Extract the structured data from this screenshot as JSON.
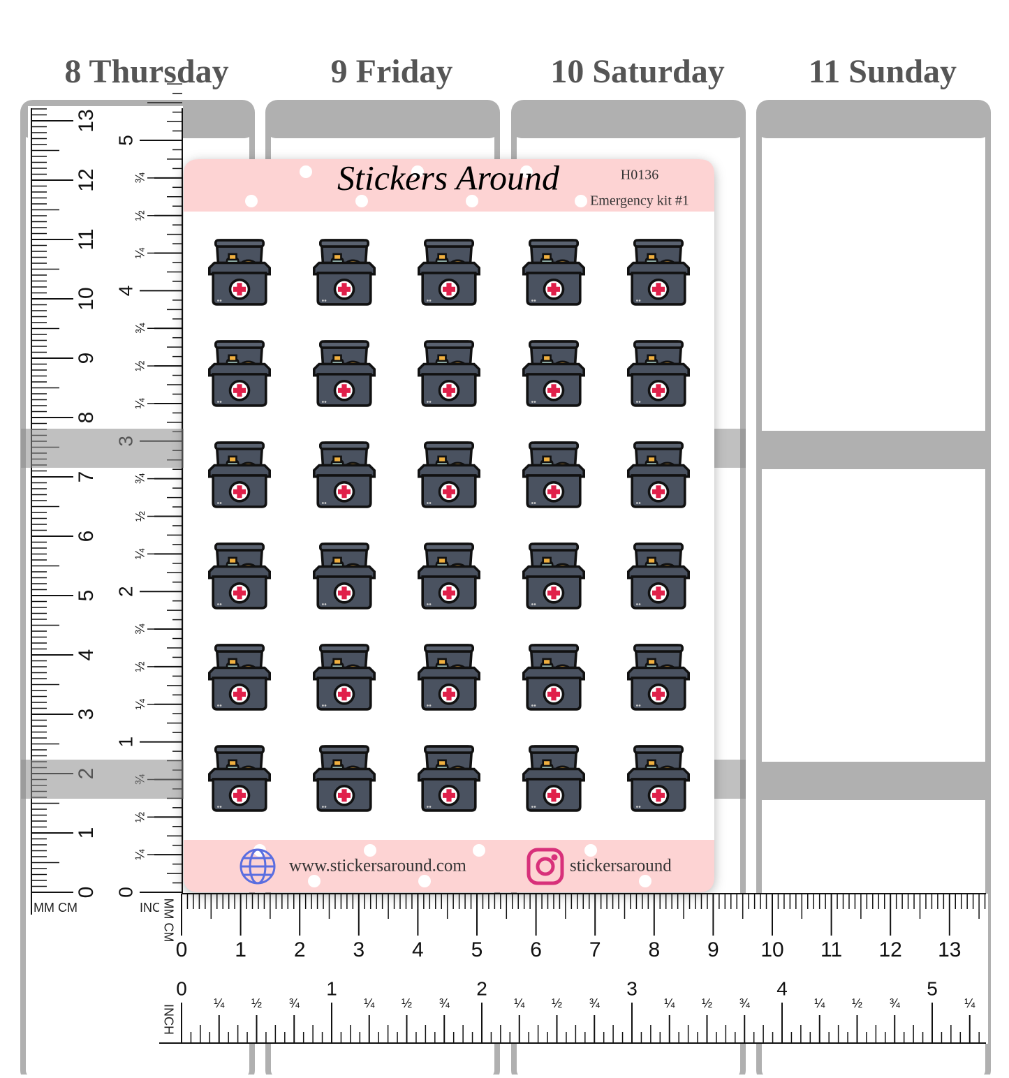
{
  "days": [
    "8 Thursday",
    "9 Friday",
    "10 Saturday",
    "11 Sunday"
  ],
  "sheet": {
    "title": "Stickers Around",
    "code": "H0136",
    "name": "Emergency kit #1",
    "website": "www.stickersaround.com",
    "instagram": "stickersaround"
  },
  "vertical_ruler": {
    "units": [
      "MM CM",
      "INCH"
    ],
    "cm": [
      0,
      1,
      2,
      3,
      4,
      5,
      6,
      7,
      8,
      9,
      10,
      11,
      12,
      13
    ],
    "inch": [
      0,
      {
        "value": 0.25,
        "label": "¼"
      },
      {
        "value": 0.5,
        "label": "½"
      },
      {
        "value": 0.75,
        "label": "¾"
      },
      1,
      {
        "value": 1.25,
        "label": "¼"
      },
      {
        "value": 1.5,
        "label": "½"
      },
      {
        "value": 1.75,
        "label": "¾"
      },
      2,
      {
        "value": 2.25,
        "label": "¼"
      },
      {
        "value": 2.5,
        "label": "½"
      },
      {
        "value": 2.75,
        "label": "¾"
      },
      3,
      {
        "value": 3.25,
        "label": "¼"
      },
      {
        "value": 3.5,
        "label": "½"
      },
      {
        "value": 3.75,
        "label": "¾"
      },
      4,
      {
        "value": 4.25,
        "label": "¼"
      },
      {
        "value": 4.5,
        "label": "½"
      },
      {
        "value": 4.75,
        "label": "¾"
      },
      5
    ]
  },
  "horizontal_ruler": {
    "units": [
      "MM CM",
      "INCH"
    ],
    "cm": [
      0,
      1,
      2,
      3,
      4,
      5,
      6,
      7,
      8,
      9,
      10,
      11,
      12,
      13
    ],
    "inch": [
      0,
      {
        "value": 0.25,
        "label": "¼"
      },
      {
        "value": 0.5,
        "label": "½"
      },
      {
        "value": 0.75,
        "label": "¾"
      },
      1,
      {
        "value": 1.25,
        "label": "¼"
      },
      {
        "value": 1.5,
        "label": "½"
      },
      {
        "value": 1.75,
        "label": "¾"
      },
      2,
      {
        "value": 2.25,
        "label": "¼"
      },
      {
        "value": 2.5,
        "label": "½"
      },
      {
        "value": 2.75,
        "label": "¾"
      },
      3,
      {
        "value": 3.25,
        "label": "¼"
      },
      {
        "value": 3.5,
        "label": "½"
      },
      {
        "value": 3.75,
        "label": "¾"
      },
      4,
      {
        "value": 4.25,
        "label": "¼"
      },
      {
        "value": 4.5,
        "label": "½"
      },
      {
        "value": 4.75,
        "label": "¾"
      },
      5,
      {
        "value": 5.25,
        "label": "¼"
      }
    ]
  }
}
